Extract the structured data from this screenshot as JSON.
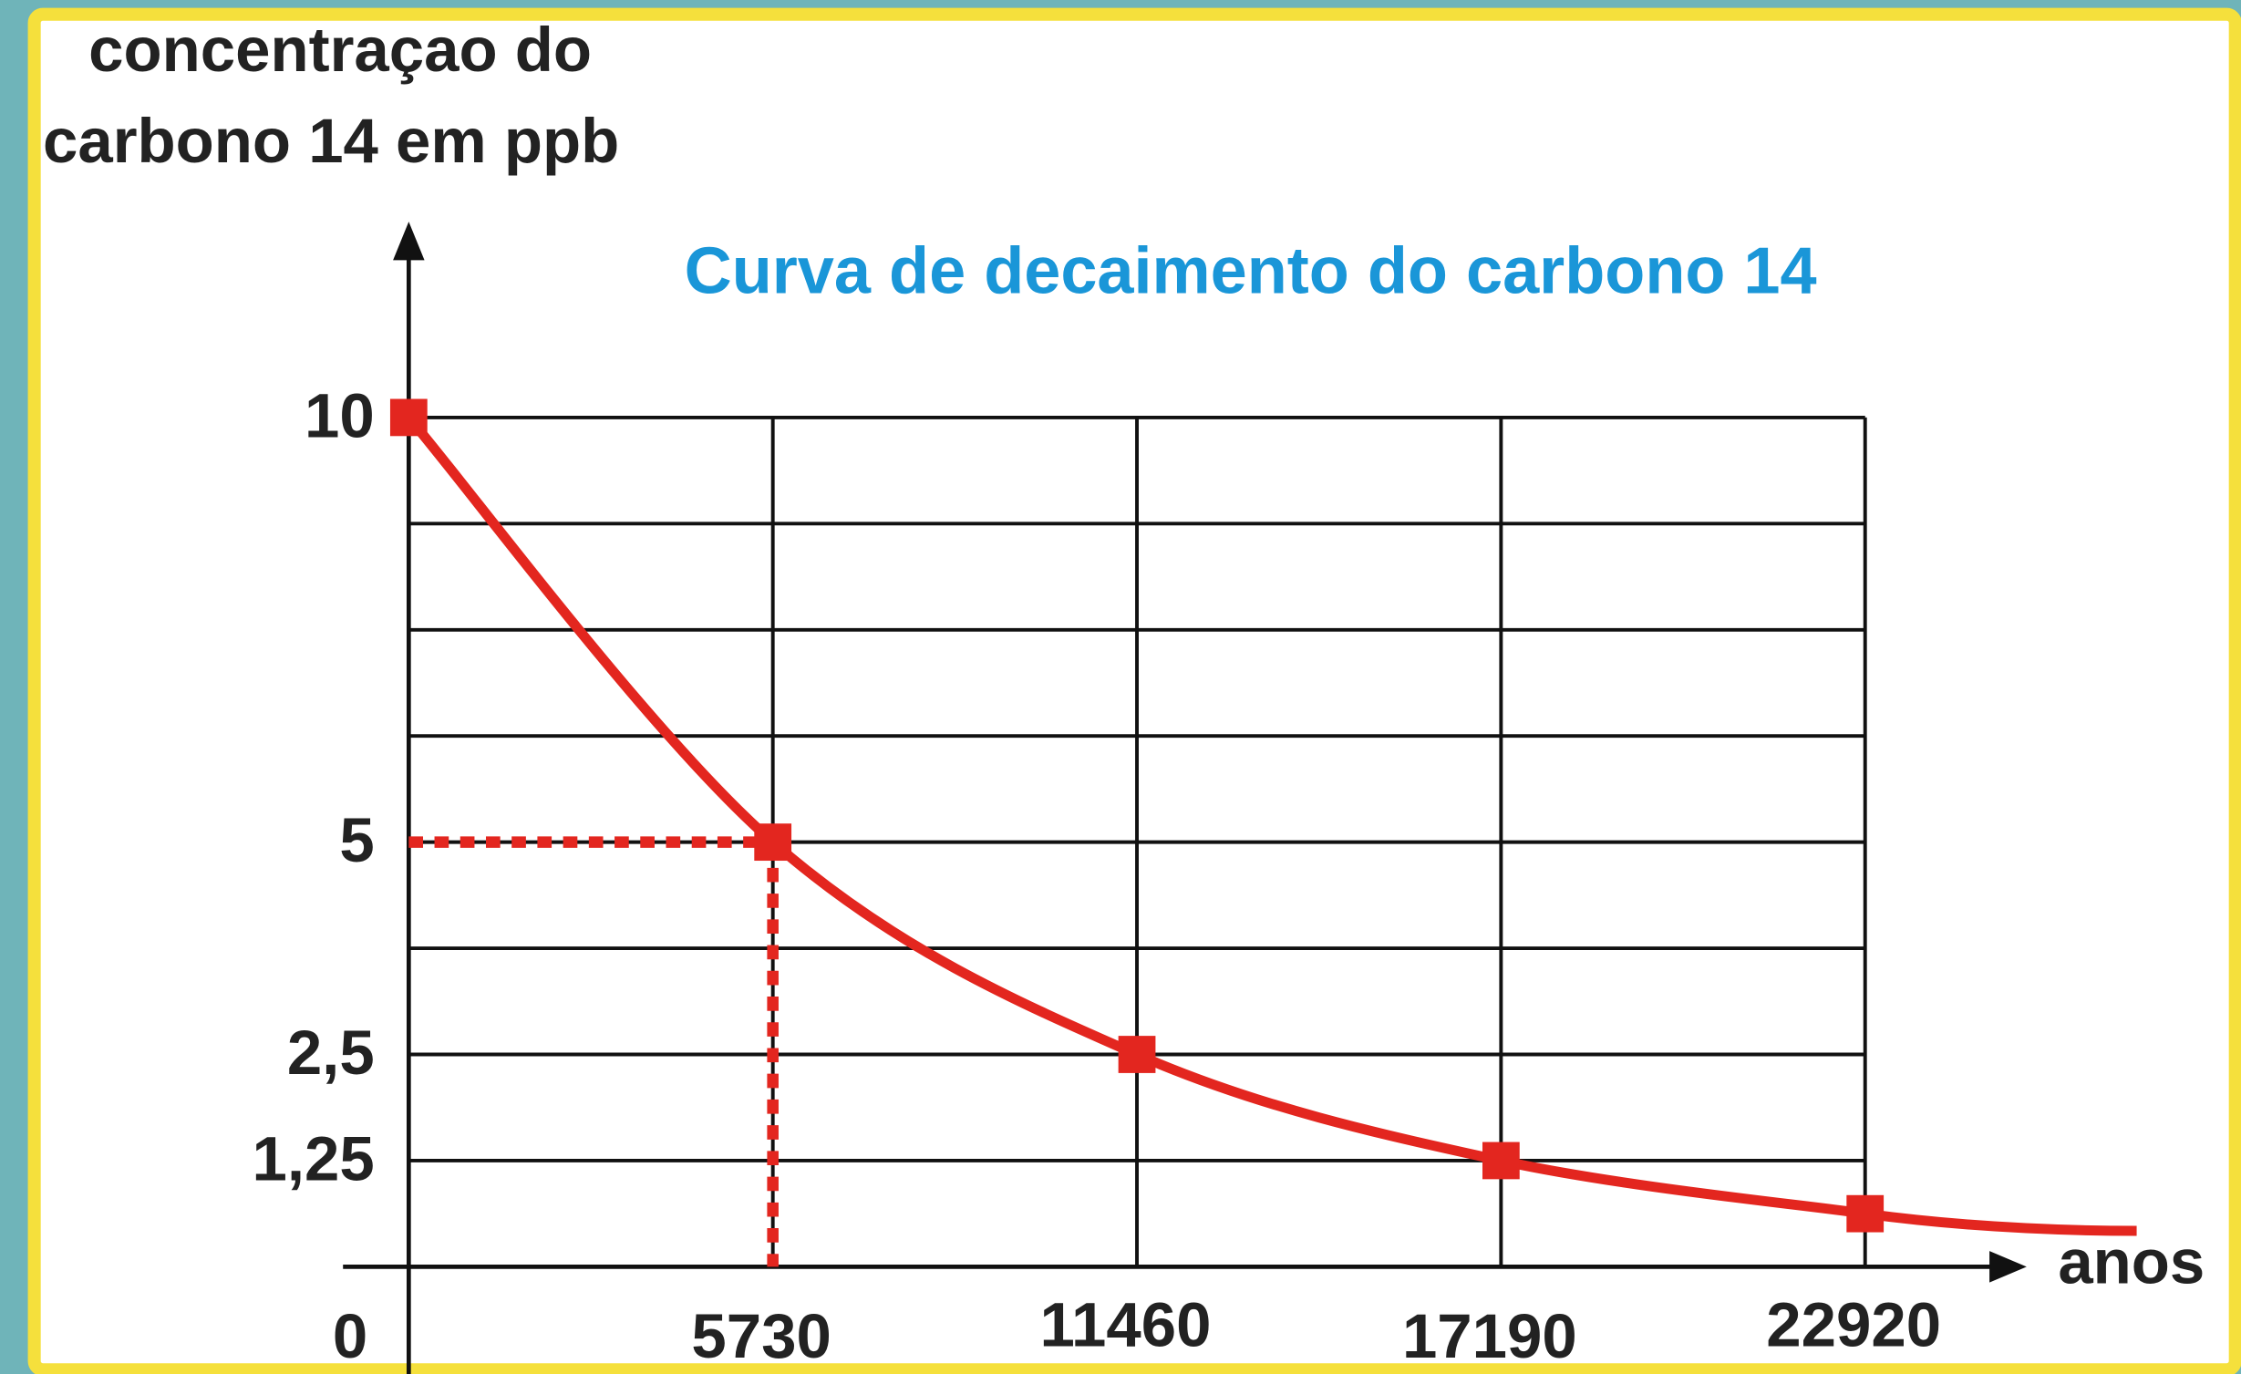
{
  "chart_data": {
    "type": "line",
    "title": "Curva de decaimento do carbono 14",
    "ylabel": [
      "concentraçao do",
      "carbono 14 em ppb"
    ],
    "xlabel": "anos",
    "x": [
      0,
      5730,
      11460,
      17190,
      22920
    ],
    "series": [
      {
        "name": "carbono 14",
        "color": "#e3261f",
        "values": [
          10,
          5,
          2.5,
          1.25,
          0.625
        ]
      }
    ],
    "xlim": [
      0,
      22920
    ],
    "ylim": [
      0,
      10
    ],
    "xticks": [
      0,
      5730,
      11460,
      17190,
      22920
    ],
    "yticks": [
      10,
      5,
      {
        "value": 2.5,
        "label": "2,5"
      },
      {
        "value": 1.25,
        "label": "1,25"
      }
    ],
    "ygrid": [
      1.25,
      2.5,
      3.75,
      5,
      6.25,
      7.5,
      8.75,
      10
    ],
    "grid": true,
    "title_color": "#1a96d8"
  }
}
